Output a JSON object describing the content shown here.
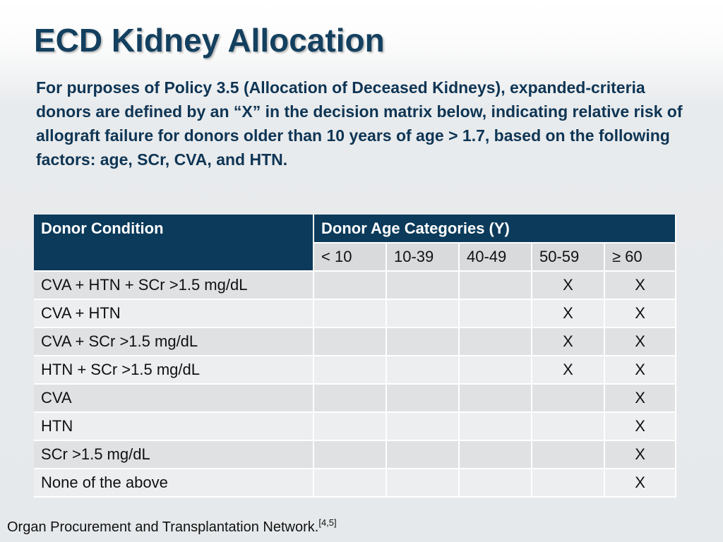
{
  "title": "ECD Kidney Allocation",
  "intro": "For purposes of Policy 3.5 (Allocation of Deceased Kidneys), expanded-criteria donors are defined by an “X” in the decision matrix below, indicating relative risk of allograft failure for donors older than 10 years of age > 1.7, based on the following factors: age, SCr, CVA, and HTN.",
  "table": {
    "condition_header": "Donor Condition",
    "age_header": "Donor Age Categories (Y)",
    "age_categories": [
      "< 10",
      "10-39",
      "40-49",
      "50-59",
      "≥ 60"
    ],
    "rows": [
      {
        "condition": "CVA + HTN + SCr >1.5 mg/dL",
        "values": [
          "",
          "",
          "",
          "X",
          "X"
        ]
      },
      {
        "condition": "CVA + HTN",
        "values": [
          "",
          "",
          "",
          "X",
          "X"
        ]
      },
      {
        "condition": "CVA + SCr >1.5 mg/dL",
        "values": [
          "",
          "",
          "",
          "X",
          "X"
        ]
      },
      {
        "condition": "HTN + SCr >1.5 mg/dL",
        "values": [
          "",
          "",
          "",
          "X",
          "X"
        ]
      },
      {
        "condition": "CVA",
        "values": [
          "",
          "",
          "",
          "",
          "X"
        ]
      },
      {
        "condition": "HTN",
        "values": [
          "",
          "",
          "",
          "",
          "X"
        ]
      },
      {
        "condition": "SCr >1.5 mg/dL",
        "values": [
          "",
          "",
          "",
          "",
          "X"
        ]
      },
      {
        "condition": "None of the above",
        "values": [
          "",
          "",
          "",
          "",
          "X"
        ]
      }
    ]
  },
  "footer": {
    "source": "Organ Procurement and Transplantation Network.",
    "refs": "[4,5]"
  },
  "colors": {
    "title": "#14405f",
    "header_bg": "#0b3a5a"
  }
}
